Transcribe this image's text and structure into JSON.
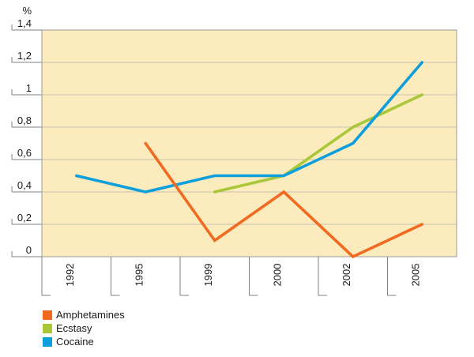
{
  "chart_data": {
    "type": "line",
    "title": "",
    "ylabel": "%",
    "xlabel": "",
    "categories": [
      "1992",
      "1995",
      "1999",
      "2000",
      "2002",
      "2005"
    ],
    "y_axis": {
      "min": 0,
      "max": 1.4,
      "step": 0.2,
      "tick_labels": [
        "0",
        "0,2",
        "0,4",
        "0,6",
        "0,8",
        "1",
        "1,2",
        "1,4"
      ]
    },
    "grid": true,
    "legend_position": "bottom-left",
    "series": [
      {
        "name": "Amphetamines",
        "color": "#F16A21",
        "values": [
          null,
          0.7,
          0.1,
          0.4,
          0.0,
          0.2
        ]
      },
      {
        "name": "Ecstasy",
        "color": "#A8C83A",
        "values": [
          null,
          null,
          0.4,
          0.5,
          0.8,
          1.0
        ]
      },
      {
        "name": "Cocaine",
        "color": "#0D9EDC",
        "values": [
          0.5,
          0.4,
          0.5,
          0.5,
          0.7,
          1.2
        ]
      }
    ],
    "colors": {
      "plot_background": "#FCEBBC",
      "gridline": "#C6C1B2",
      "axis": "#808080",
      "plot_border": "#999999",
      "text": "#1a1a1a"
    }
  }
}
